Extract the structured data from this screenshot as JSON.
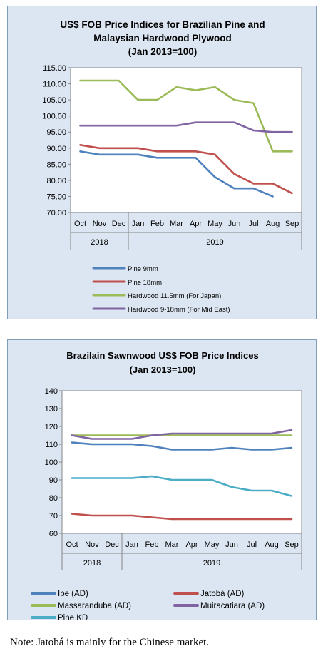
{
  "note": "Note: Jatobá is mainly for the Chinese market.",
  "chart_data": [
    {
      "type": "line",
      "title": [
        "US$ FOB Price Indices for Brazilian Pine and",
        "Malaysian Hardwood Plywood",
        "(Jan 2013=100)"
      ],
      "categories": [
        "Oct",
        "Nov",
        "Dec",
        "Jan",
        "Feb",
        "Mar",
        "Apr",
        "May",
        "Jun",
        "Jul",
        "Aug",
        "Sep"
      ],
      "years": [
        {
          "label": "2018",
          "from": 0,
          "to": 2
        },
        {
          "label": "2019",
          "from": 3,
          "to": 11
        }
      ],
      "ylim": [
        70,
        115
      ],
      "yticks": [
        "70.00",
        "75.00",
        "80.00",
        "85.00",
        "90.00",
        "95.00",
        "100.00",
        "105.00",
        "110.00",
        "115.00"
      ],
      "grid": false,
      "legend": "bottom",
      "series": [
        {
          "name": "Pine 9mm",
          "color": "#4f81bd",
          "values": [
            89,
            88,
            88,
            88,
            87,
            87,
            87,
            81,
            77.5,
            77.5,
            75,
            null
          ]
        },
        {
          "name": "Pine 18mm",
          "color": "#c0504d",
          "values": [
            91,
            90,
            90,
            90,
            89,
            89,
            89,
            88,
            82,
            79,
            79,
            76
          ]
        },
        {
          "name": "Hardwood 11.5mm (For Japan)",
          "color": "#9bbb59",
          "values": [
            111,
            111,
            111,
            105,
            105,
            109,
            108,
            109,
            105,
            104,
            89,
            89
          ]
        },
        {
          "name": "Hardwood 9-18mm (For Mid East)",
          "color": "#8064a2",
          "values": [
            97,
            97,
            97,
            97,
            97,
            97,
            98,
            98,
            98,
            95.5,
            95,
            95
          ]
        }
      ]
    },
    {
      "type": "line",
      "title": [
        "Brazilain Sawnwood US$ FOB Price Indices",
        "(Jan 2013=100)"
      ],
      "categories": [
        "Oct",
        "Nov",
        "Dec",
        "Jan",
        "Feb",
        "Mar",
        "Apr",
        "May",
        "Jun",
        "Jul",
        "Aug",
        "Sep"
      ],
      "years": [
        {
          "label": "2018",
          "from": 0,
          "to": 2
        },
        {
          "label": "2019",
          "from": 3,
          "to": 11
        }
      ],
      "ylim": [
        60,
        140
      ],
      "yticks": [
        "60",
        "70",
        "80",
        "90",
        "100",
        "110",
        "120",
        "130",
        "140"
      ],
      "grid": false,
      "legend": "bottom",
      "series": [
        {
          "name": "Ipe (AD)",
          "color": "#4f81bd",
          "values": [
            111,
            110,
            110,
            110,
            109,
            107,
            107,
            107,
            108,
            107,
            107,
            108
          ]
        },
        {
          "name": "Jatobá (AD)",
          "color": "#c0504d",
          "values": [
            71,
            70,
            70,
            70,
            69,
            68,
            68,
            68,
            68,
            68,
            68,
            68
          ]
        },
        {
          "name": "Massaranduba (AD)",
          "color": "#9bbb59",
          "values": [
            115,
            115,
            115,
            115,
            115,
            115,
            115,
            115,
            115,
            115,
            115,
            115
          ]
        },
        {
          "name": "Muiracatiara (AD)",
          "color": "#8064a2",
          "values": [
            115,
            113,
            113,
            113,
            115,
            116,
            116,
            116,
            116,
            116,
            116,
            118
          ]
        },
        {
          "name": "Pine KD",
          "color": "#4bacc6",
          "values": [
            91,
            91,
            91,
            91,
            92,
            90,
            90,
            90,
            86,
            84,
            84,
            81
          ]
        }
      ]
    }
  ]
}
